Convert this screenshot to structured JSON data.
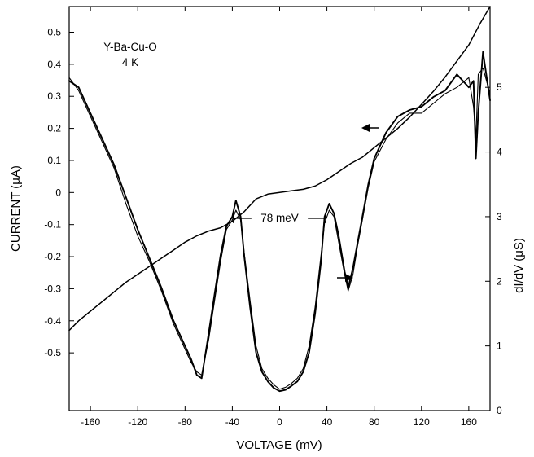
{
  "chart_data": {
    "type": "line",
    "title": "",
    "xlabel": "VOLTAGE (mV)",
    "ylabel_left": "CURRENT (μA)",
    "ylabel_right": "dI/dV (μS)",
    "xlim": [
      -178,
      178
    ],
    "ylim_left": [
      -0.68,
      0.58
    ],
    "ylim_right": [
      0,
      6.25
    ],
    "x_ticks": [
      "-160",
      "-120",
      "-80",
      "-40",
      "0",
      "40",
      "80",
      "120",
      "160"
    ],
    "left_ticks": [
      "0.5",
      "0.4",
      "0.3",
      "0.2",
      "0.1",
      "0",
      "-0.1",
      "-0.2",
      "-0.3",
      "-0.4",
      "-0.5"
    ],
    "right_ticks": [
      "0",
      "1",
      "2",
      "3",
      "4",
      "5"
    ],
    "annotations": {
      "sample": "Y-Ba-Cu-O",
      "temperature": "4 K",
      "gap_label": "78 meV",
      "gap_marker_mV": [
        -39,
        39
      ]
    },
    "grid": false,
    "series": [
      {
        "axis": "left",
        "x": [
          -178,
          -170,
          -160,
          -150,
          -140,
          -130,
          -120,
          -110,
          -100,
          -90,
          -80,
          -70,
          -60,
          -50,
          -40,
          -30,
          -20,
          -10,
          0,
          10,
          20,
          30,
          40,
          50,
          60,
          70,
          80,
          90,
          100,
          110,
          120,
          130,
          140,
          150,
          160,
          170,
          178
        ],
        "y": [
          -0.43,
          -0.4,
          -0.37,
          -0.34,
          -0.31,
          -0.28,
          -0.255,
          -0.23,
          -0.205,
          -0.18,
          -0.155,
          -0.135,
          -0.12,
          -0.11,
          -0.09,
          -0.06,
          -0.02,
          -0.005,
          0.0,
          0.005,
          0.01,
          0.02,
          0.04,
          0.065,
          0.09,
          0.11,
          0.14,
          0.17,
          0.2,
          0.235,
          0.275,
          0.315,
          0.36,
          0.41,
          0.46,
          0.53,
          0.58
        ]
      },
      {
        "axis": "right",
        "x": [
          -178,
          -170,
          -160,
          -150,
          -140,
          -130,
          -120,
          -110,
          -100,
          -90,
          -80,
          -75,
          -70,
          -66,
          -60,
          -55,
          -50,
          -45,
          -40,
          -37,
          -33,
          -30,
          -25,
          -20,
          -15,
          -10,
          -5,
          0,
          5,
          10,
          15,
          20,
          25,
          30,
          35,
          38,
          42,
          46,
          50,
          55,
          58,
          62,
          66,
          70,
          75,
          80,
          90,
          100,
          110,
          120,
          130,
          140,
          150,
          160,
          164,
          166,
          168,
          172,
          178
        ],
        "y": [
          5.1,
          5.0,
          4.6,
          4.2,
          3.8,
          3.3,
          2.8,
          2.35,
          1.9,
          1.4,
          1.0,
          0.8,
          0.55,
          0.5,
          1.2,
          1.8,
          2.4,
          2.85,
          3.0,
          3.25,
          3.0,
          2.4,
          1.6,
          0.9,
          0.6,
          0.45,
          0.35,
          0.3,
          0.32,
          0.38,
          0.45,
          0.6,
          0.9,
          1.5,
          2.3,
          3.0,
          3.2,
          3.05,
          2.7,
          2.15,
          1.9,
          2.2,
          2.6,
          3.0,
          3.5,
          3.9,
          4.3,
          4.55,
          4.65,
          4.7,
          4.85,
          4.95,
          5.2,
          5.0,
          5.1,
          3.9,
          4.6,
          5.55,
          4.8
        ]
      },
      {
        "axis": "right",
        "x": [
          -178,
          -170,
          -160,
          -150,
          -140,
          -130,
          -120,
          -110,
          -100,
          -90,
          -80,
          -75,
          -70,
          -66,
          -60,
          -55,
          -50,
          -45,
          -40,
          -37,
          -33,
          -30,
          -25,
          -20,
          -15,
          -10,
          -5,
          0,
          5,
          10,
          15,
          20,
          25,
          30,
          35,
          38,
          42,
          46,
          50,
          55,
          58,
          62,
          66,
          70,
          75,
          80,
          90,
          100,
          110,
          120,
          130,
          140,
          150,
          160,
          164,
          166,
          168,
          172,
          178
        ],
        "y": [
          5.15,
          4.95,
          4.55,
          4.15,
          3.75,
          3.2,
          2.7,
          2.3,
          1.85,
          1.35,
          0.95,
          0.75,
          0.6,
          0.55,
          1.1,
          1.7,
          2.3,
          2.8,
          2.95,
          3.1,
          2.95,
          2.45,
          1.7,
          1.0,
          0.65,
          0.5,
          0.4,
          0.33,
          0.36,
          0.42,
          0.5,
          0.65,
          1.0,
          1.6,
          2.4,
          2.9,
          3.1,
          3.0,
          2.6,
          2.1,
          1.85,
          2.1,
          2.55,
          2.95,
          3.45,
          3.85,
          4.2,
          4.45,
          4.6,
          4.6,
          4.75,
          4.9,
          5.0,
          5.15,
          4.7,
          4.2,
          5.2,
          5.3,
          4.9
        ]
      }
    ]
  }
}
